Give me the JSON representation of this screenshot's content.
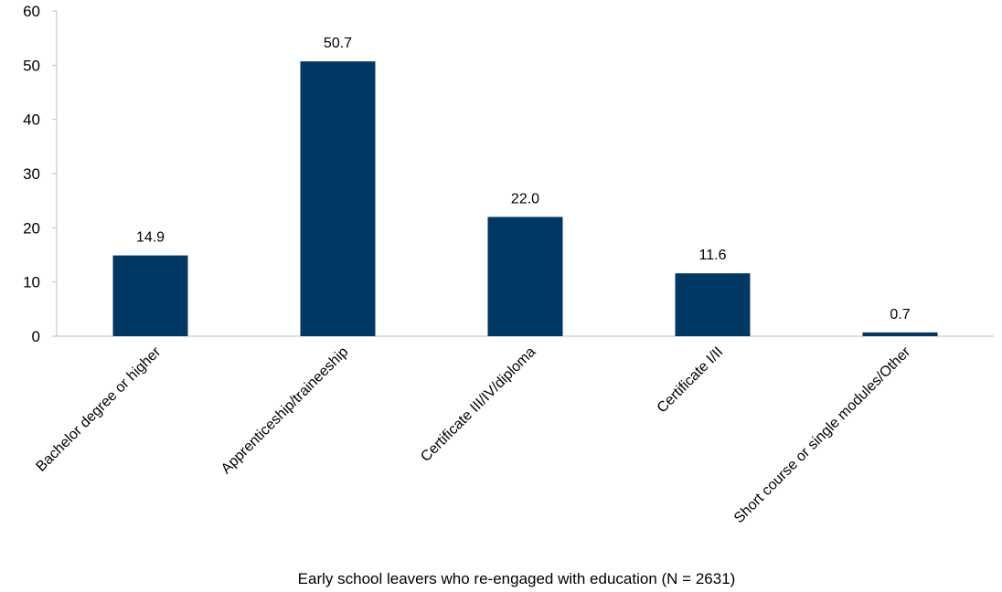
{
  "chart_data": {
    "type": "bar",
    "title": "",
    "xlabel": "Early school leavers who re-engaged with education (N = 2631)",
    "ylabel": "",
    "categories": [
      "Bachelor degree or higher",
      "Apprenticeship/traineeship",
      "Certificate III/IV/diploma",
      "Certificate I/II",
      "Short course or single modules/Other"
    ],
    "values": [
      14.9,
      50.7,
      22.0,
      11.6,
      0.7
    ],
    "value_labels": [
      "14.9",
      "50.7",
      "22.0",
      "11.6",
      "0.7"
    ],
    "ylim": [
      0,
      60
    ],
    "yticks": [
      0,
      10,
      20,
      30,
      40,
      50,
      60
    ],
    "grid": false,
    "legend": "none",
    "bar_color": "#003865"
  }
}
